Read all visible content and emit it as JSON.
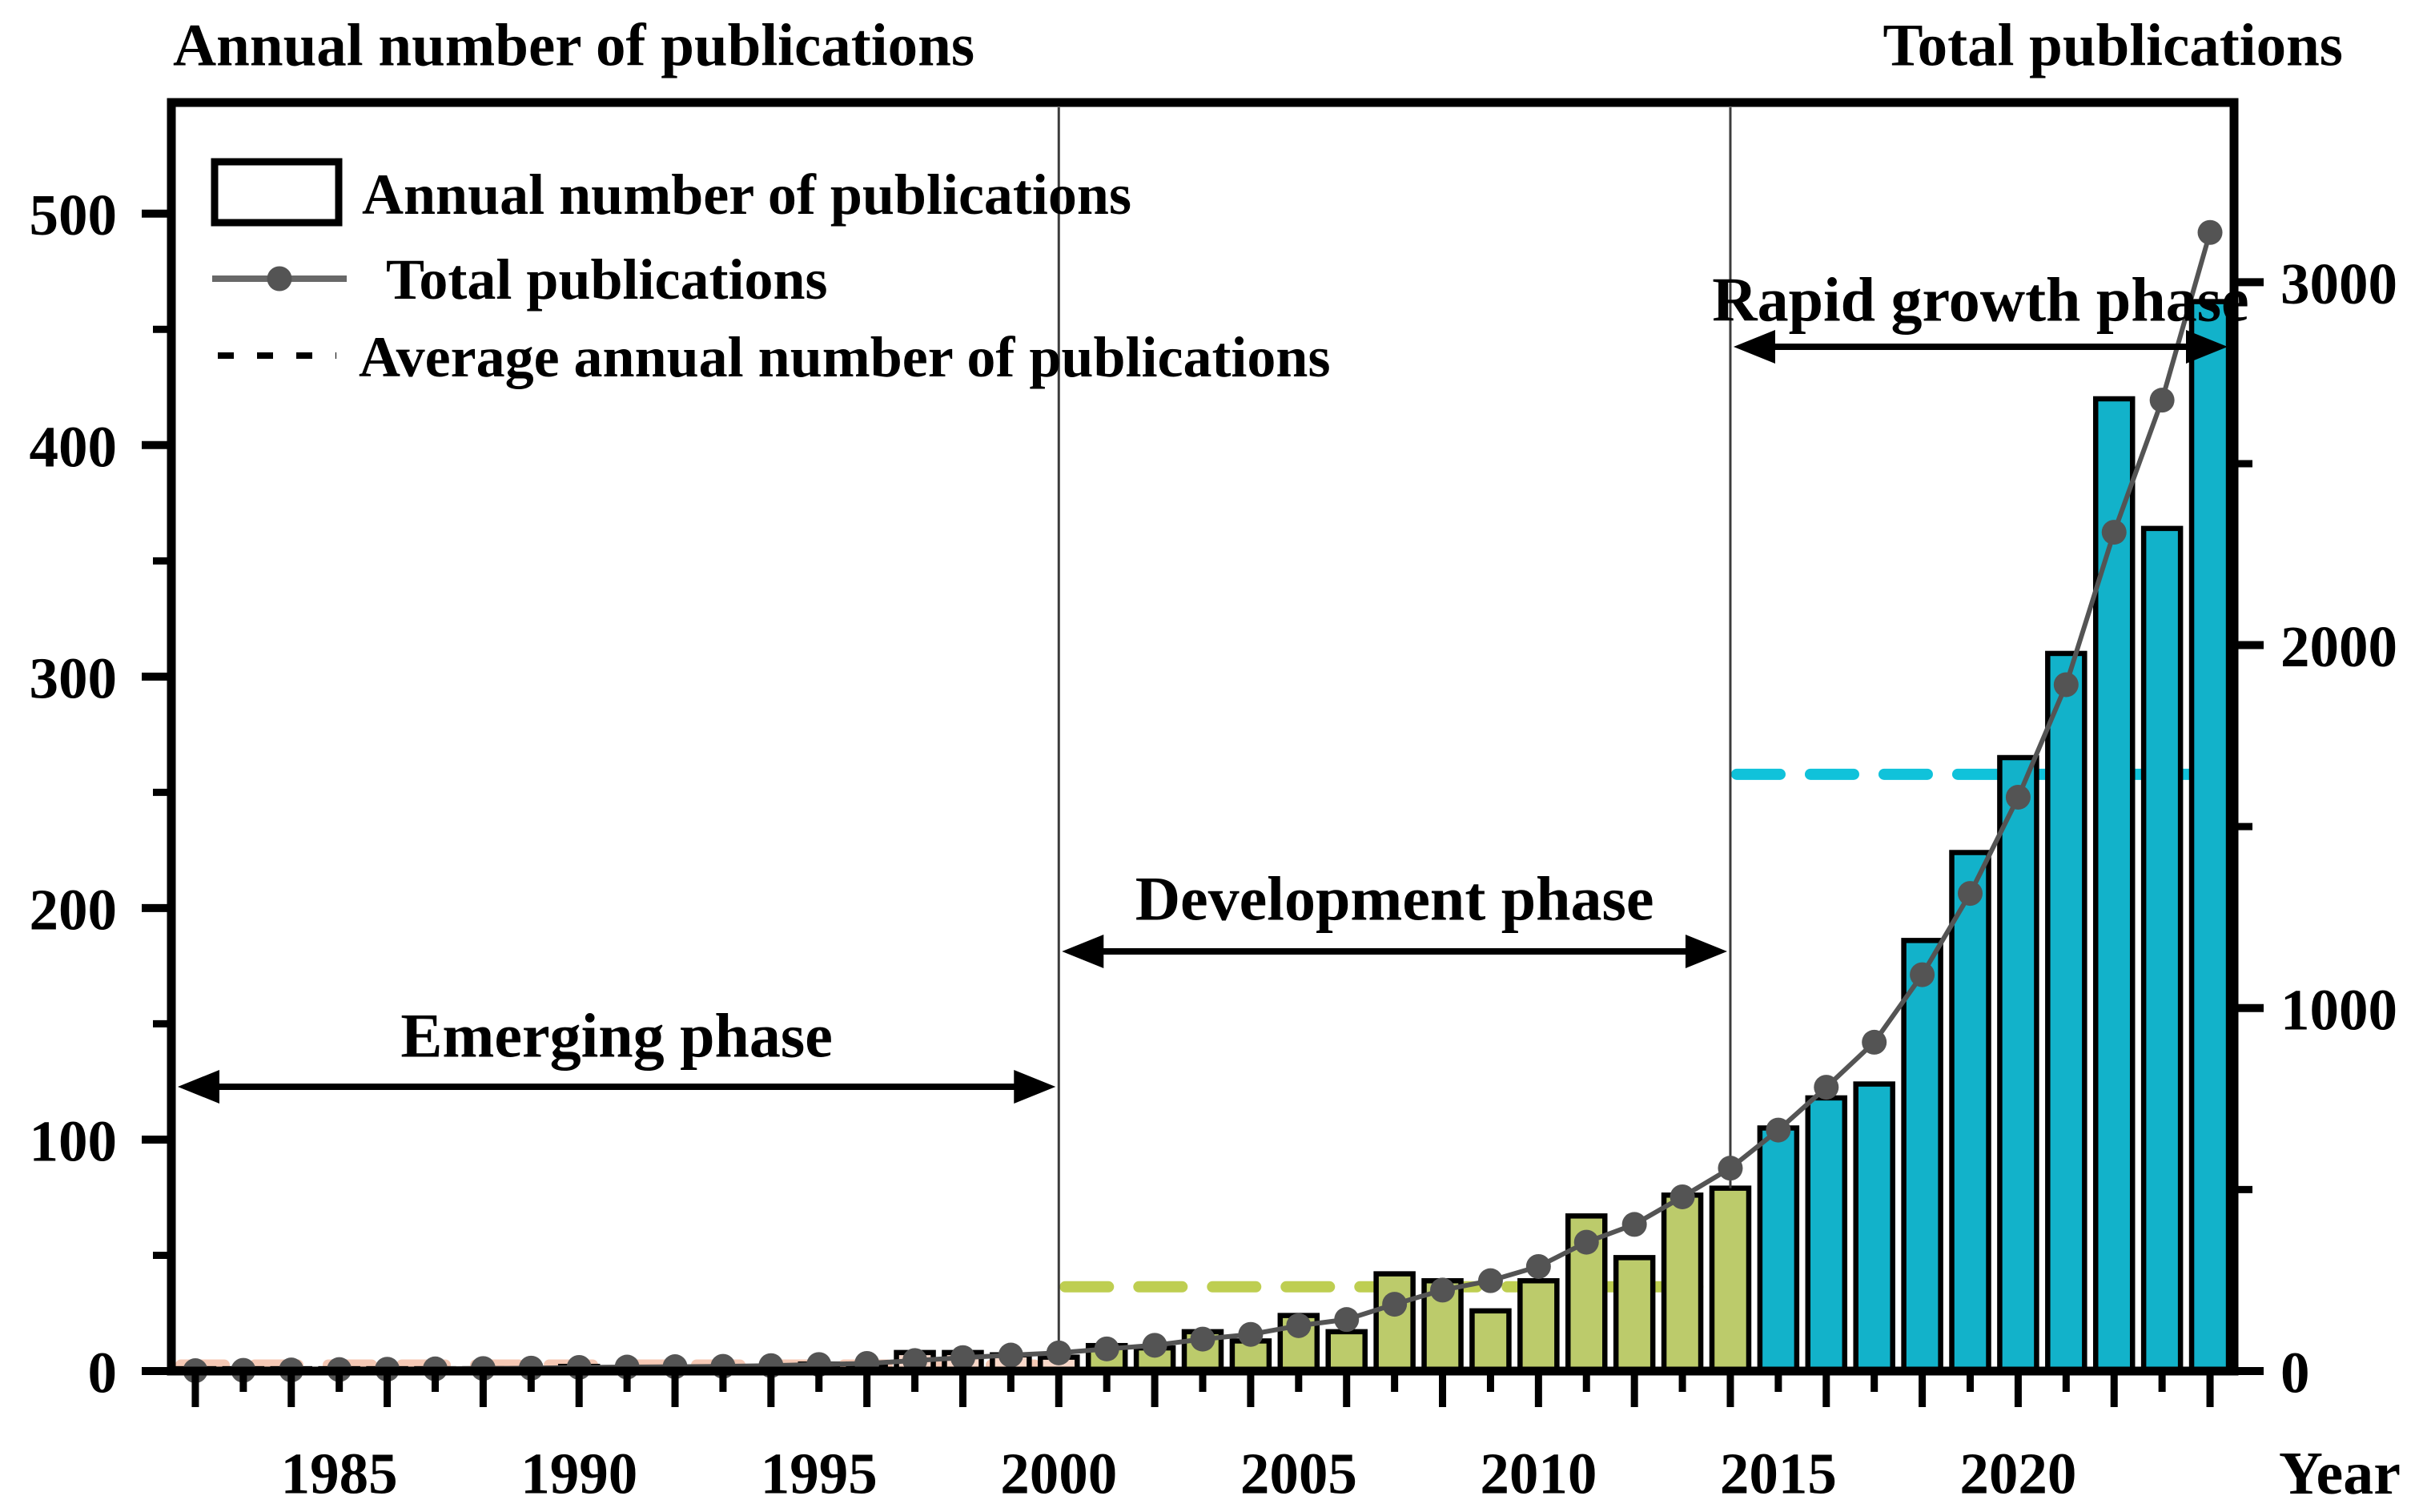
{
  "titles": {
    "left_axis_title": "Annual number of publications",
    "right_axis_title": "Total publications",
    "x_axis_title": "Year"
  },
  "legend": {
    "items": [
      {
        "swatch": "bar-outline-swatch",
        "label": "Annual number of publications"
      },
      {
        "swatch": "line-dot-swatch",
        "label": "Total publications"
      },
      {
        "swatch": "dashed-line-swatch",
        "label": "Average annual number of publications"
      }
    ]
  },
  "chart_data": {
    "type": "bar+line",
    "title": "",
    "xlabel": "Year",
    "years": [
      1982,
      1983,
      1984,
      1985,
      1986,
      1987,
      1988,
      1989,
      1990,
      1991,
      1992,
      1993,
      1994,
      1995,
      1996,
      1997,
      1998,
      1999,
      2000,
      2001,
      2002,
      2003,
      2004,
      2005,
      2006,
      2007,
      2008,
      2009,
      2010,
      2011,
      2012,
      2013,
      2014,
      2015,
      2016,
      2017,
      2018,
      2019,
      2020,
      2021,
      2022,
      2023,
      2024
    ],
    "series": [
      {
        "name": "Annual number of publications",
        "type": "bar",
        "axis": "left",
        "values": [
          1,
          1,
          1,
          1,
          1,
          1,
          1,
          1,
          2,
          1,
          1,
          1,
          2,
          3,
          3,
          8,
          8,
          7,
          6,
          11,
          10,
          17,
          13,
          24,
          17,
          42,
          39,
          26,
          39,
          67,
          49,
          76,
          79,
          105,
          118,
          124,
          186,
          224,
          265,
          310,
          420,
          364,
          462
        ]
      },
      {
        "name": "Total publications",
        "type": "line",
        "axis": "right",
        "values": [
          1,
          2,
          3,
          4,
          5,
          6,
          7,
          8,
          10,
          11,
          12,
          13,
          15,
          18,
          21,
          29,
          37,
          44,
          50,
          61,
          71,
          88,
          101,
          125,
          142,
          184,
          223,
          249,
          288,
          355,
          404,
          480,
          559,
          664,
          782,
          906,
          1092,
          1316,
          1581,
          1891,
          2311,
          2675,
          3137
        ]
      },
      {
        "name": "Average annual number of publications",
        "type": "phase-average-dash",
        "axis": "left",
        "values": [
          2.6,
          36.4,
          257.8
        ]
      }
    ],
    "phases": [
      {
        "label": "Emerging phase",
        "start_year": 1982,
        "end_year": 2000,
        "average": 2.6,
        "bar_color": "#f9d8c9",
        "dash_color": "#f5c8b4"
      },
      {
        "label": "Development phase",
        "start_year": 2001,
        "end_year": 2014,
        "average": 36.4,
        "bar_color": "#bccb6b",
        "dash_color": "#bece51"
      },
      {
        "label": "Rapid growth phase",
        "start_year": 2015,
        "end_year": 2024,
        "average": 257.8,
        "bar_color": "#12b2ca",
        "dash_color": "#10c2da"
      }
    ],
    "dividers_at_years": [
      2000,
      2014
    ],
    "left_axis": {
      "ticks": [
        0,
        100,
        200,
        300,
        400,
        500
      ],
      "minor_ticks": [
        50,
        150,
        250,
        350,
        450
      ],
      "range": [
        0,
        548
      ]
    },
    "right_axis": {
      "ticks": [
        0,
        1000,
        2000,
        3000
      ],
      "minor_ticks": [
        500,
        1500,
        2500
      ],
      "range": [
        0,
        3495
      ]
    },
    "x_axis": {
      "labeled_ticks": [
        1985,
        1990,
        1995,
        2000,
        2005,
        2010,
        2015,
        2020
      ]
    },
    "line_color": "#545454",
    "legend_line_color": "#686868"
  }
}
